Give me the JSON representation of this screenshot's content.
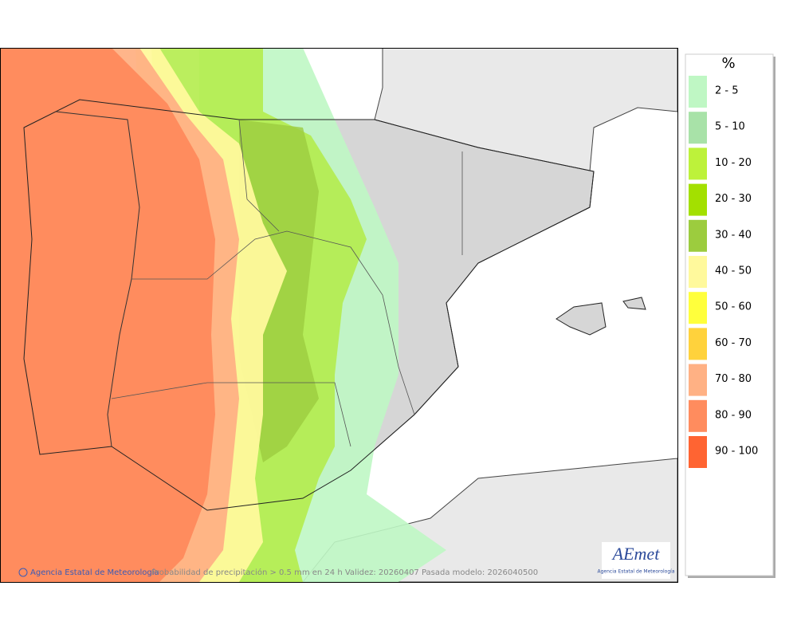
{
  "legend": {
    "title": "%",
    "items": [
      {
        "label": "2 - 5",
        "color": "#bff7c4"
      },
      {
        "label": "5 - 10",
        "color": "#a8e2a8"
      },
      {
        "label": "10 - 20",
        "color": "#bdf23a"
      },
      {
        "label": "20 - 30",
        "color": "#a3e000"
      },
      {
        "label": "30 - 40",
        "color": "#9ccc3e"
      },
      {
        "label": "40 - 50",
        "color": "#fff99c"
      },
      {
        "label": "50 - 60",
        "color": "#ffff3c"
      },
      {
        "label": "60 - 70",
        "color": "#ffd23c"
      },
      {
        "label": "70 - 80",
        "color": "#ffb184"
      },
      {
        "label": "80 - 90",
        "color": "#ff8c5e"
      },
      {
        "label": "90 - 100",
        "color": "#ff6432"
      }
    ]
  },
  "footer": {
    "agency": "Agencia Estatal de Meteorología",
    "caption": "Probabilidad de precipitación > 0.5 mm en 24 h Validez: 20260407 Pasada modelo: 2026040500"
  },
  "logo": {
    "brand": "AEmet",
    "subtitle": "Agencia Estatal de Meteorología"
  }
}
